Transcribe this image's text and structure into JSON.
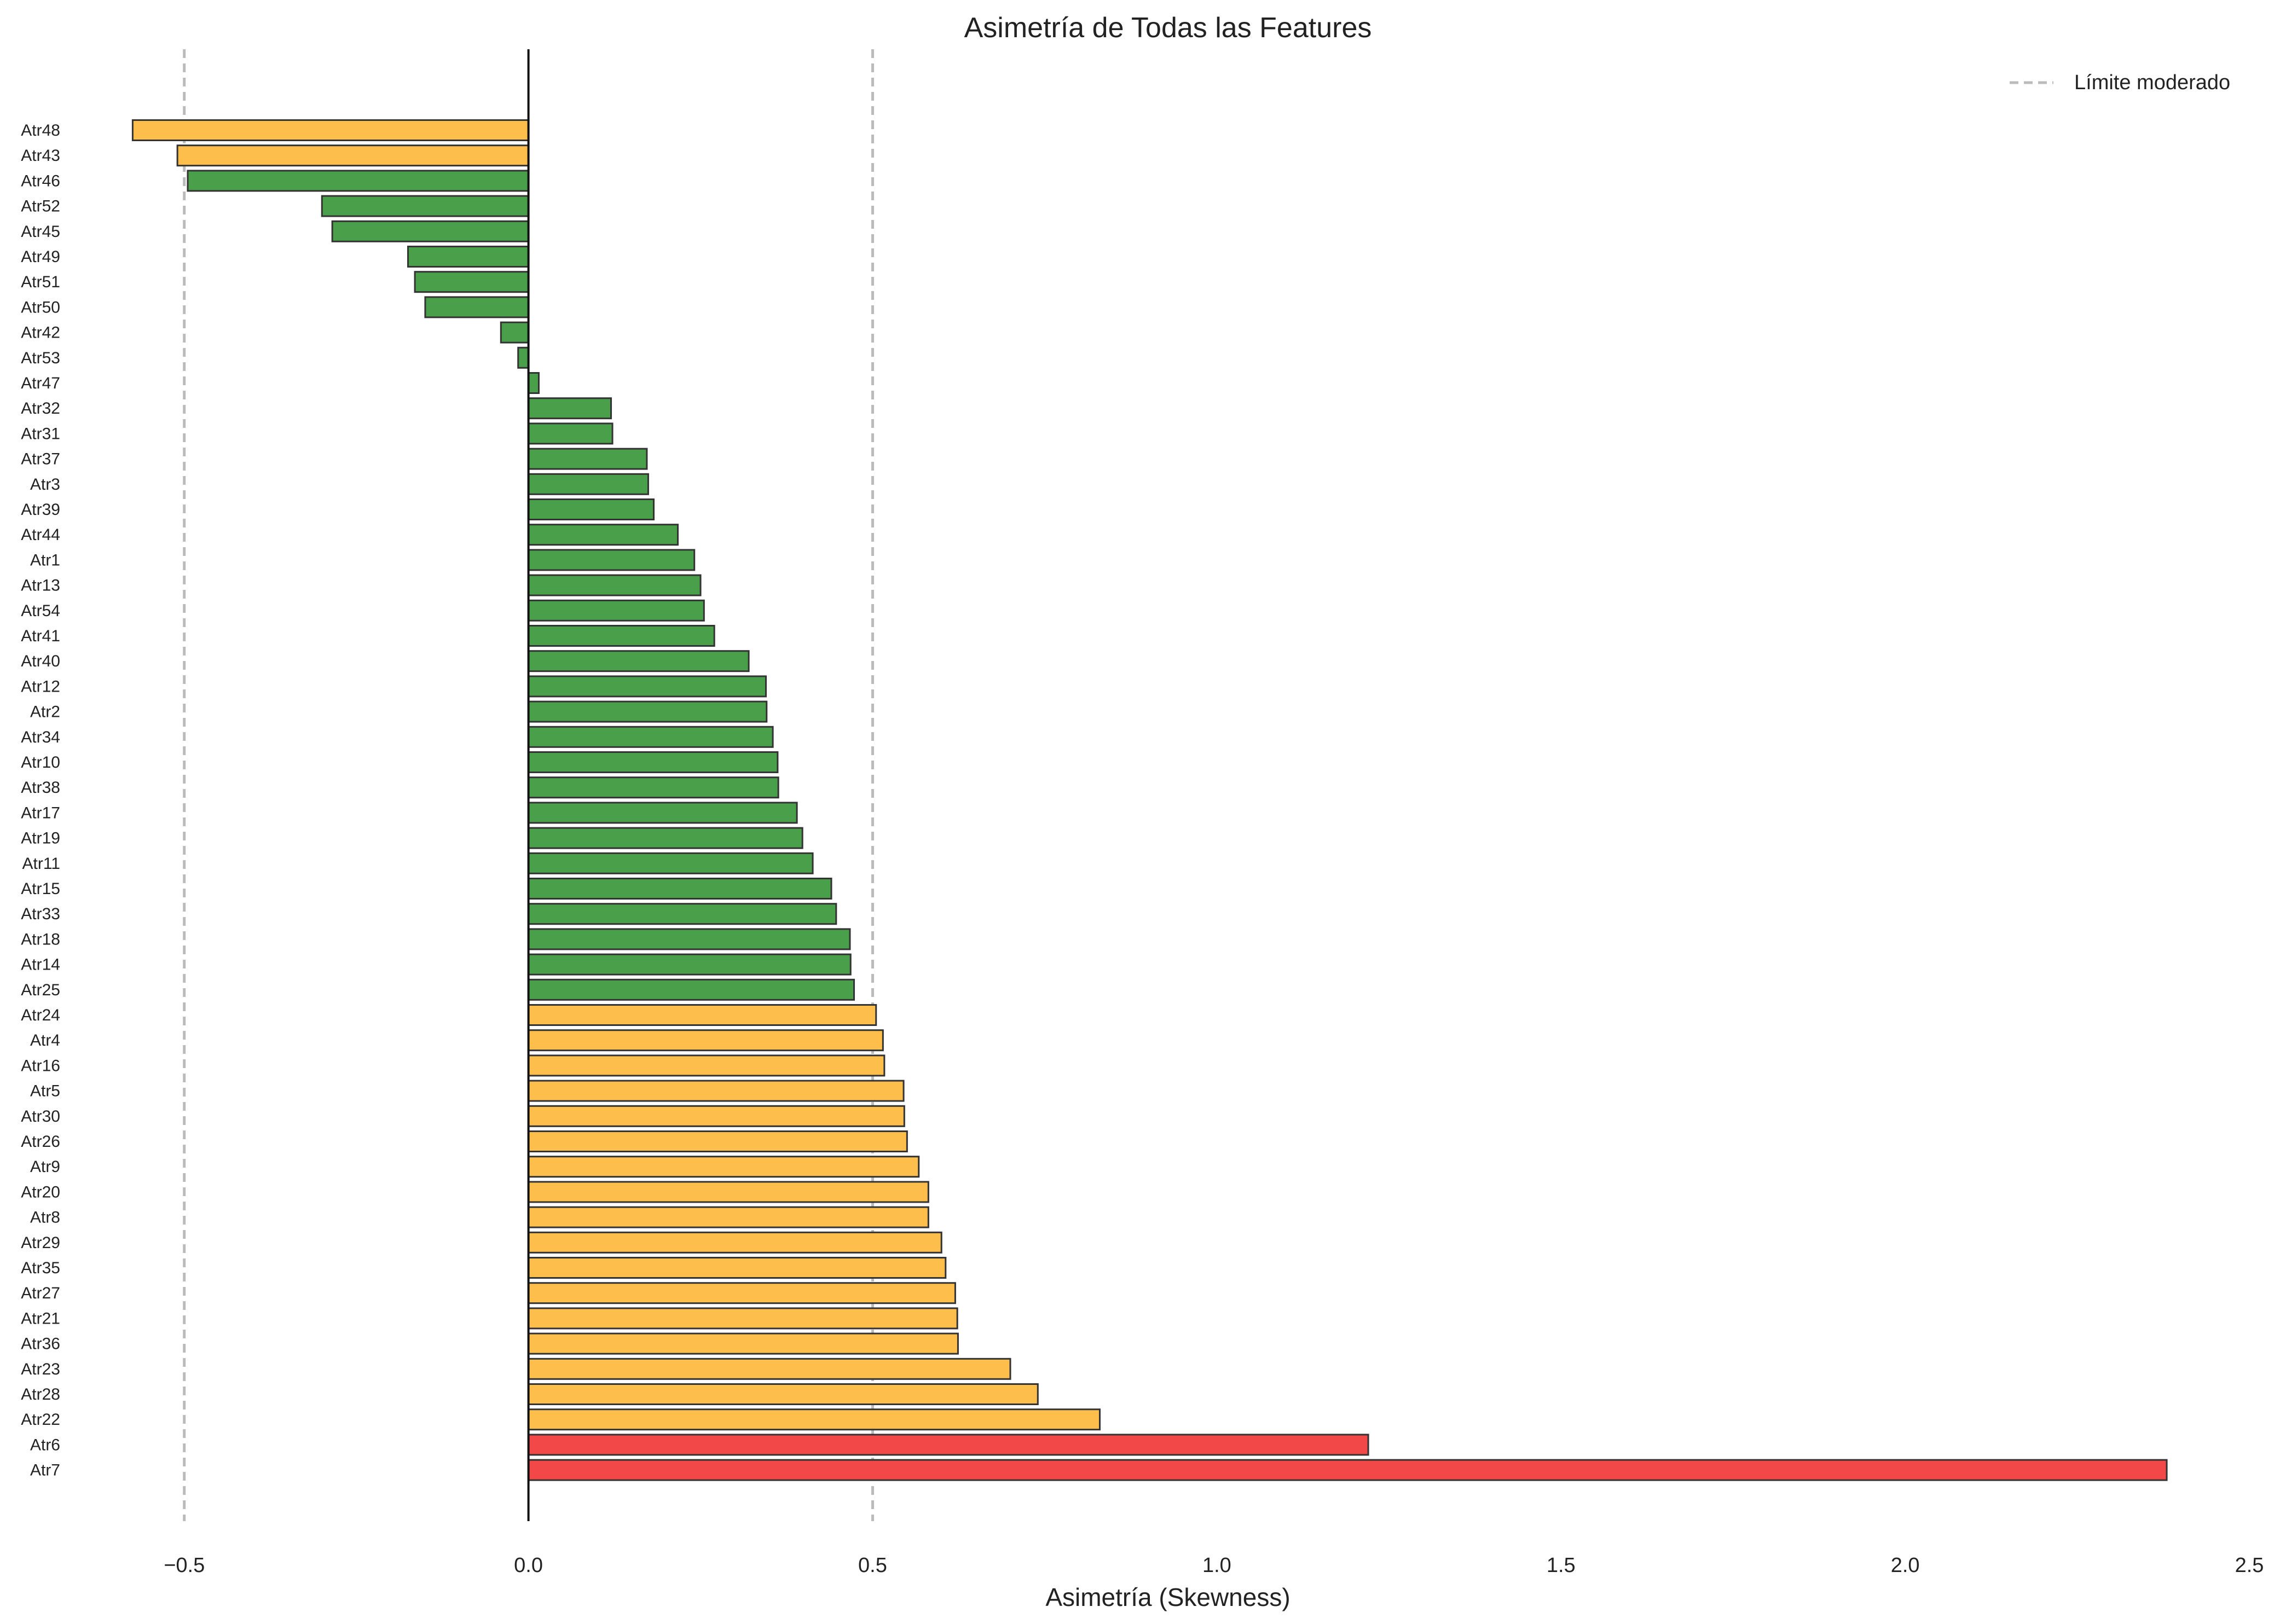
{
  "chart_data": {
    "type": "bar",
    "orientation": "horizontal",
    "title": "Asimetría de Todas las Features",
    "xlabel": "Asimetría (Skewness)",
    "ylabel": "",
    "xlim": [
      -0.72,
      2.5
    ],
    "xticks": [
      -0.5,
      0.0,
      0.5,
      1.0,
      1.5,
      2.0,
      2.5
    ],
    "xtick_labels": [
      "−0.5",
      "0.0",
      "0.5",
      "1.0",
      "1.5",
      "2.0",
      "2.5"
    ],
    "grid": false,
    "legend": {
      "position": "top-right",
      "entries": [
        {
          "label": "Límite moderado",
          "style": "dashed",
          "color": "#bbbbbb"
        }
      ]
    },
    "reference_lines": [
      {
        "x": -0.5,
        "style": "dashed"
      },
      {
        "x": 0.5,
        "style": "dashed"
      }
    ],
    "colors": {
      "green": "#4aa04a",
      "orange": "#fdbe4c",
      "red": "#f24848",
      "edge": "#333333",
      "refline": "#bbbbbb"
    },
    "categories": [
      "Atr48",
      "Atr43",
      "Atr46",
      "Atr52",
      "Atr45",
      "Atr49",
      "Atr51",
      "Atr50",
      "Atr42",
      "Atr53",
      "Atr47",
      "Atr32",
      "Atr31",
      "Atr37",
      "Atr3",
      "Atr39",
      "Atr44",
      "Atr1",
      "Atr13",
      "Atr54",
      "Atr41",
      "Atr40",
      "Atr12",
      "Atr2",
      "Atr34",
      "Atr10",
      "Atr38",
      "Atr17",
      "Atr19",
      "Atr11",
      "Atr15",
      "Atr33",
      "Atr18",
      "Atr14",
      "Atr25",
      "Atr24",
      "Atr4",
      "Atr16",
      "Atr5",
      "Atr30",
      "Atr26",
      "Atr9",
      "Atr20",
      "Atr8",
      "Atr29",
      "Atr35",
      "Atr27",
      "Atr21",
      "Atr36",
      "Atr23",
      "Atr28",
      "Atr22",
      "Atr6",
      "Atr7"
    ],
    "values": [
      -0.575,
      -0.51,
      -0.495,
      -0.3,
      -0.285,
      -0.175,
      -0.165,
      -0.15,
      -0.04,
      -0.015,
      0.015,
      0.12,
      0.122,
      0.172,
      0.174,
      0.182,
      0.217,
      0.241,
      0.25,
      0.255,
      0.27,
      0.32,
      0.345,
      0.346,
      0.355,
      0.362,
      0.363,
      0.39,
      0.398,
      0.413,
      0.44,
      0.447,
      0.467,
      0.468,
      0.473,
      0.505,
      0.515,
      0.517,
      0.545,
      0.546,
      0.55,
      0.567,
      0.581,
      0.581,
      0.6,
      0.606,
      0.62,
      0.623,
      0.624,
      0.7,
      0.74,
      0.83,
      1.22,
      2.38
    ],
    "bar_colors": [
      "orange",
      "orange",
      "green",
      "green",
      "green",
      "green",
      "green",
      "green",
      "green",
      "green",
      "green",
      "green",
      "green",
      "green",
      "green",
      "green",
      "green",
      "green",
      "green",
      "green",
      "green",
      "green",
      "green",
      "green",
      "green",
      "green",
      "green",
      "green",
      "green",
      "green",
      "green",
      "green",
      "green",
      "green",
      "green",
      "orange",
      "orange",
      "orange",
      "orange",
      "orange",
      "orange",
      "orange",
      "orange",
      "orange",
      "orange",
      "orange",
      "orange",
      "orange",
      "orange",
      "orange",
      "orange",
      "orange",
      "red",
      "red"
    ]
  }
}
